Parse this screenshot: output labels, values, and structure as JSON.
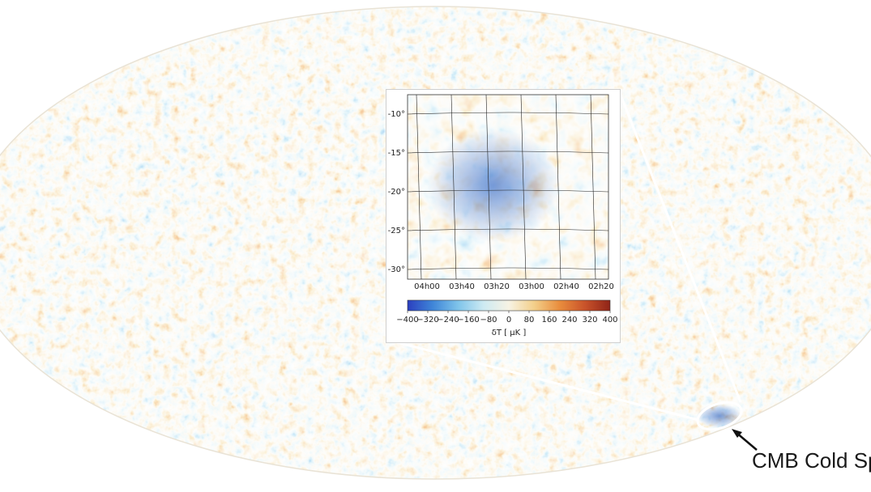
{
  "inset": {
    "dec_labels": [
      "-10°",
      "-15°",
      "-20°",
      "-25°",
      "-30°"
    ],
    "ra_labels": [
      "04h00",
      "03h40",
      "03h20",
      "03h00",
      "02h40",
      "02h20"
    ],
    "colorbar_ticks": [
      "−400",
      "−320",
      "−240",
      "−160",
      "−80",
      "0",
      "80",
      "160",
      "240",
      "320",
      "400"
    ],
    "colorbar_label": "δT [ μK ]",
    "colormap": [
      "#2b3fbf",
      "#3f86d8",
      "#7fc4ea",
      "#cdeaf2",
      "#f7f3e4",
      "#f3cf8a",
      "#e98d3d",
      "#c9532a",
      "#8f2418"
    ]
  },
  "callout": {
    "text": "CMB Cold Sp"
  },
  "colors": {
    "cold": "#2f7fd0",
    "warm": "#e0843a",
    "background": "#ffffff"
  }
}
